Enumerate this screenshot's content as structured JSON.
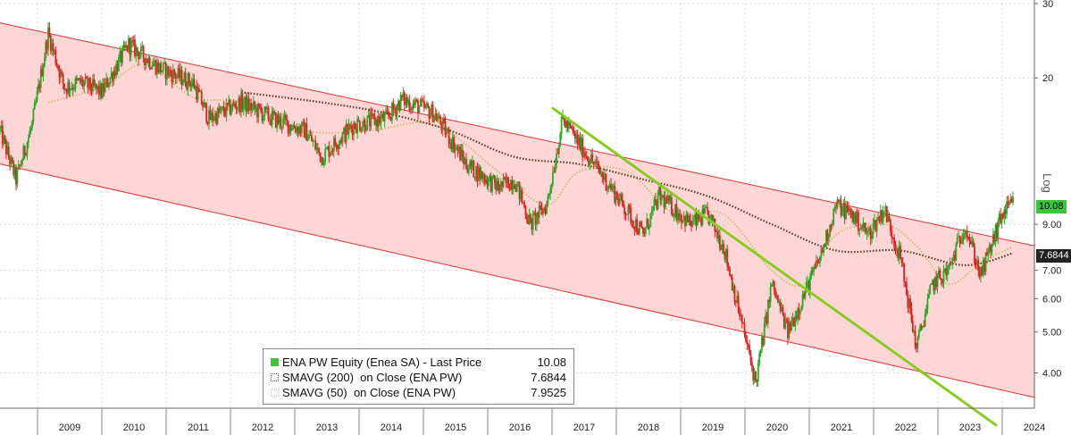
{
  "chart_data": {
    "type": "candlestick",
    "ticker_label": "ENA PW Equity (Enea SA) - Last Price",
    "y_scale": "log",
    "y_axis_label": "Log",
    "ylim": [
      3.3,
      30
    ],
    "y_ticks": [
      {
        "value": 4,
        "label": "4.00"
      },
      {
        "value": 5,
        "label": "5.00"
      },
      {
        "value": 6,
        "label": "6.00"
      },
      {
        "value": 7,
        "label": "7.00"
      },
      {
        "value": 9,
        "label": "9.00"
      },
      {
        "value": 20,
        "label": "20"
      },
      {
        "value": 30,
        "label": "30"
      }
    ],
    "x_range": [
      "2008-06",
      "2024-07"
    ],
    "x_years": [
      "2009",
      "2010",
      "2011",
      "2012",
      "2013",
      "2014",
      "2015",
      "2016",
      "2017",
      "2018",
      "2019",
      "2020",
      "2021",
      "2022",
      "2023",
      "2024"
    ],
    "price_path": [
      [
        "2008-06",
        15.0
      ],
      [
        "2008-09",
        11.5
      ],
      [
        "2008-12",
        15.5
      ],
      [
        "2009-03",
        25.5
      ],
      [
        "2009-06",
        19.0
      ],
      [
        "2009-09",
        19.5
      ],
      [
        "2010-01",
        18.5
      ],
      [
        "2010-06",
        24.0
      ],
      [
        "2010-12",
        21.0
      ],
      [
        "2011-06",
        19.5
      ],
      [
        "2011-09",
        16.0
      ],
      [
        "2012-03",
        17.5
      ],
      [
        "2012-09",
        16.0
      ],
      [
        "2013-03",
        15.0
      ],
      [
        "2013-06",
        13.0
      ],
      [
        "2013-12",
        15.5
      ],
      [
        "2014-06",
        16.0
      ],
      [
        "2014-09",
        17.8
      ],
      [
        "2015-03",
        16.5
      ],
      [
        "2015-09",
        12.5
      ],
      [
        "2016-03",
        11.0
      ],
      [
        "2016-06",
        11.5
      ],
      [
        "2016-09",
        9.0
      ],
      [
        "2016-12",
        10.0
      ],
      [
        "2017-03",
        16.0
      ],
      [
        "2017-06",
        14.0
      ],
      [
        "2017-12",
        11.0
      ],
      [
        "2018-06",
        8.5
      ],
      [
        "2018-09",
        10.5
      ],
      [
        "2019-03",
        9.0
      ],
      [
        "2019-06",
        9.5
      ],
      [
        "2019-09",
        8.0
      ],
      [
        "2020-03",
        3.8
      ],
      [
        "2020-06",
        6.5
      ],
      [
        "2020-09",
        5.0
      ],
      [
        "2021-03",
        7.5
      ],
      [
        "2021-06",
        10.0
      ],
      [
        "2021-09",
        9.5
      ],
      [
        "2021-12",
        8.5
      ],
      [
        "2022-03",
        9.8
      ],
      [
        "2022-06",
        7.5
      ],
      [
        "2022-09",
        4.6
      ],
      [
        "2022-12",
        6.5
      ],
      [
        "2023-03",
        7.0
      ],
      [
        "2023-06",
        9.0
      ],
      [
        "2023-09",
        6.8
      ],
      [
        "2024-01",
        9.5
      ],
      [
        "2024-03",
        10.08
      ]
    ],
    "series": [
      {
        "name": "SMAVG (200)  on Close (ENA PW)",
        "value": "7.6844",
        "style": "dotted",
        "points": [
          [
            "2012-03",
            18.5
          ],
          [
            "2013-06",
            17.5
          ],
          [
            "2014-06",
            16.5
          ],
          [
            "2015-06",
            15.0
          ],
          [
            "2016-06",
            13.0
          ],
          [
            "2017-06",
            12.5
          ],
          [
            "2018-06",
            11.5
          ],
          [
            "2019-06",
            10.5
          ],
          [
            "2020-06",
            9.0
          ],
          [
            "2021-06",
            7.8
          ],
          [
            "2022-06",
            7.8
          ],
          [
            "2023-06",
            7.2
          ],
          [
            "2024-03",
            7.6844
          ]
        ]
      },
      {
        "name": "SMAVG (50)  on Close (ENA PW)",
        "value": "7.9525",
        "style": "dotted",
        "points": [
          [
            "2009-03",
            17.5
          ],
          [
            "2010-01",
            19.0
          ],
          [
            "2010-09",
            21.5
          ],
          [
            "2011-06",
            18.0
          ],
          [
            "2012-03",
            17.5
          ],
          [
            "2013-03",
            15.0
          ],
          [
            "2014-03",
            15.0
          ],
          [
            "2015-03",
            15.5
          ],
          [
            "2016-03",
            12.0
          ],
          [
            "2016-12",
            10.0
          ],
          [
            "2017-06",
            12.0
          ],
          [
            "2018-03",
            12.0
          ],
          [
            "2018-12",
            9.5
          ],
          [
            "2019-09",
            9.5
          ],
          [
            "2020-06",
            7.0
          ],
          [
            "2020-12",
            6.5
          ],
          [
            "2021-06",
            8.5
          ],
          [
            "2022-03",
            9.0
          ],
          [
            "2022-09",
            8.0
          ],
          [
            "2023-03",
            6.5
          ],
          [
            "2023-09",
            7.3
          ],
          [
            "2024-03",
            7.9525
          ]
        ]
      }
    ],
    "channel": {
      "upper": [
        [
          "2008-06",
          27.0
        ],
        [
          "2024-07",
          8.0
        ]
      ],
      "lower": [
        [
          "2008-06",
          12.5
        ],
        [
          "2024-07",
          3.5
        ]
      ],
      "fill_color": "#ffd6d6",
      "line_color": "#e03030"
    },
    "trendline": {
      "points": [
        [
          "2017-01",
          17.0
        ],
        [
          "2023-12",
          3.0
        ]
      ],
      "color": "#88cc22"
    },
    "last_price_badge": "10.08",
    "sma200_badge": "7.6844",
    "legend_position": "bottom-center",
    "up_color": "#2aa82a",
    "down_color": "#dd2222",
    "grid": true
  },
  "legend": {
    "price": {
      "label": "ENA PW Equity (Enea SA) - Last Price",
      "value": "10.08"
    },
    "sma200": {
      "label": "SMAVG (200)  on Close (ENA PW)",
      "value": "7.6844"
    },
    "sma50": {
      "label": "SMAVG (50)  on Close (ENA PW)",
      "value": "7.9525"
    }
  }
}
